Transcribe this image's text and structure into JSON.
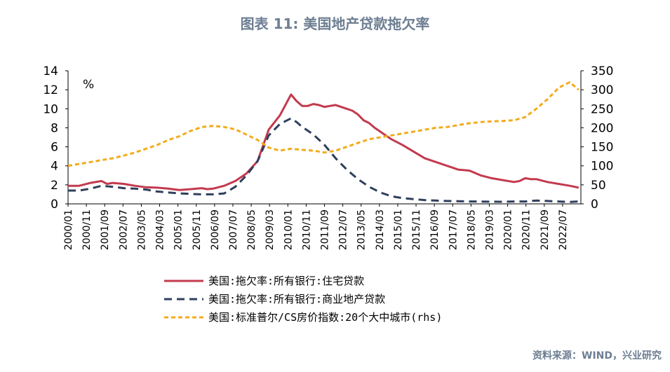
{
  "title": "图表 11: 美国地产贷款拖欠率",
  "unit_label": "%",
  "source": "资料来源：WIND，兴业研究",
  "colors": {
    "residential": "#c33a4e",
    "commercial": "#2f3f5c",
    "caseshiller": "#f2ac1c",
    "title": "#6d7e92"
  },
  "chart_data": {
    "type": "line",
    "title": "美国地产贷款拖欠率",
    "x_ticks": [
      "2000/01",
      "2000/11",
      "2001/09",
      "2002/07",
      "2003/05",
      "2004/03",
      "2005/01",
      "2005/11",
      "2006/09",
      "2007/07",
      "2008/05",
      "2009/03",
      "2010/01",
      "2010/11",
      "2011/09",
      "2012/07",
      "2013/05",
      "2014/03",
      "2015/01",
      "2015/11",
      "2016/09",
      "2017/07",
      "2018/05",
      "2019/03",
      "2020/01",
      "2020/11",
      "2021/09",
      "2022/07"
    ],
    "x_range": [
      2000.0,
      2023.0
    ],
    "y_left": {
      "range": [
        0,
        14
      ],
      "ticks": [
        "0",
        "2",
        "4",
        "6",
        "8",
        "10",
        "12",
        "14"
      ]
    },
    "y_right": {
      "range": [
        0,
        350
      ],
      "ticks": [
        "0",
        "50",
        "100",
        "150",
        "200",
        "250",
        "300",
        "350"
      ]
    },
    "legend_position": "bottom",
    "series": [
      {
        "name": "美国:拖欠率:所有银行:住宅贷款",
        "axis": "left",
        "style": "solid",
        "x": [
          2000.0,
          2000.5,
          2001.0,
          2001.5,
          2001.75,
          2002.0,
          2002.5,
          2003.0,
          2003.5,
          2004.0,
          2004.5,
          2005.0,
          2005.5,
          2006.0,
          2006.25,
          2006.5,
          2007.0,
          2007.5,
          2008.0,
          2008.5,
          2009.0,
          2009.5,
          2010.0,
          2010.25,
          2010.5,
          2010.75,
          2011.0,
          2011.25,
          2011.5,
          2011.75,
          2012.0,
          2012.5,
          2012.75,
          2013.0,
          2013.25,
          2013.5,
          2013.75,
          2014.0,
          2014.5,
          2015.0,
          2015.5,
          2016.0,
          2016.5,
          2017.0,
          2017.5,
          2018.0,
          2018.5,
          2019.0,
          2019.5,
          2020.0,
          2020.25,
          2020.5,
          2020.75,
          2021.0,
          2021.5,
          2022.0,
          2022.5,
          2022.9
        ],
        "y": [
          1.9,
          1.9,
          2.2,
          2.4,
          2.1,
          2.2,
          2.1,
          1.9,
          1.75,
          1.7,
          1.6,
          1.45,
          1.55,
          1.65,
          1.55,
          1.6,
          1.9,
          2.4,
          3.2,
          4.5,
          7.8,
          9.3,
          11.5,
          10.8,
          10.3,
          10.3,
          10.5,
          10.4,
          10.2,
          10.3,
          10.4,
          10.0,
          9.8,
          9.4,
          8.8,
          8.5,
          8.0,
          7.6,
          6.8,
          6.2,
          5.5,
          4.8,
          4.4,
          4.0,
          3.6,
          3.5,
          3.0,
          2.7,
          2.5,
          2.3,
          2.4,
          2.7,
          2.6,
          2.6,
          2.3,
          2.1,
          1.9,
          1.7
        ]
      },
      {
        "name": "美国:拖欠率:所有银行:商业地产贷款",
        "axis": "left",
        "style": "dashed",
        "x": [
          2000.0,
          2000.5,
          2001.0,
          2001.5,
          2002.0,
          2002.5,
          2003.0,
          2003.5,
          2004.0,
          2004.5,
          2005.0,
          2005.5,
          2006.0,
          2006.5,
          2007.0,
          2007.5,
          2008.0,
          2008.5,
          2009.0,
          2009.5,
          2010.0,
          2010.25,
          2010.5,
          2011.0,
          2011.5,
          2012.0,
          2012.5,
          2013.0,
          2013.5,
          2014.0,
          2014.5,
          2015.0,
          2015.5,
          2016.0,
          2016.5,
          2017.0,
          2017.5,
          2018.0,
          2018.5,
          2019.0,
          2019.5,
          2020.0,
          2020.5,
          2020.75,
          2021.0,
          2021.5,
          2022.0,
          2022.5,
          2022.9
        ],
        "y": [
          1.4,
          1.4,
          1.6,
          1.9,
          1.8,
          1.65,
          1.6,
          1.5,
          1.3,
          1.2,
          1.1,
          1.05,
          1.0,
          1.0,
          1.1,
          1.8,
          3.0,
          4.5,
          7.2,
          8.4,
          9.0,
          8.6,
          8.1,
          7.3,
          6.2,
          4.8,
          3.6,
          2.6,
          1.8,
          1.2,
          0.8,
          0.6,
          0.5,
          0.4,
          0.35,
          0.3,
          0.28,
          0.25,
          0.24,
          0.23,
          0.22,
          0.25,
          0.25,
          0.3,
          0.35,
          0.3,
          0.25,
          0.2,
          0.25
        ]
      },
      {
        "name": "美国:标准普尔/CS房价指数:20个大中城市(rhs)",
        "axis": "right",
        "style": "dotted",
        "x": [
          2000.0,
          2000.5,
          2001.0,
          2001.5,
          2002.0,
          2002.5,
          2003.0,
          2003.5,
          2004.0,
          2004.5,
          2005.0,
          2005.5,
          2006.0,
          2006.5,
          2007.0,
          2007.5,
          2008.0,
          2008.5,
          2009.0,
          2009.5,
          2010.0,
          2010.5,
          2011.0,
          2011.5,
          2012.0,
          2012.5,
          2013.0,
          2013.5,
          2014.0,
          2014.5,
          2015.0,
          2015.5,
          2016.0,
          2016.5,
          2017.0,
          2017.5,
          2018.0,
          2018.5,
          2019.0,
          2019.5,
          2020.0,
          2020.5,
          2021.0,
          2021.5,
          2022.0,
          2022.5,
          2022.9
        ],
        "y": [
          100,
          105,
          110,
          115,
          120,
          127,
          135,
          145,
          155,
          168,
          178,
          192,
          202,
          205,
          202,
          196,
          182,
          168,
          148,
          140,
          145,
          142,
          140,
          135,
          140,
          150,
          160,
          170,
          175,
          180,
          185,
          190,
          195,
          200,
          202,
          207,
          212,
          215,
          217,
          218,
          220,
          228,
          250,
          275,
          305,
          320,
          300
        ]
      }
    ]
  }
}
